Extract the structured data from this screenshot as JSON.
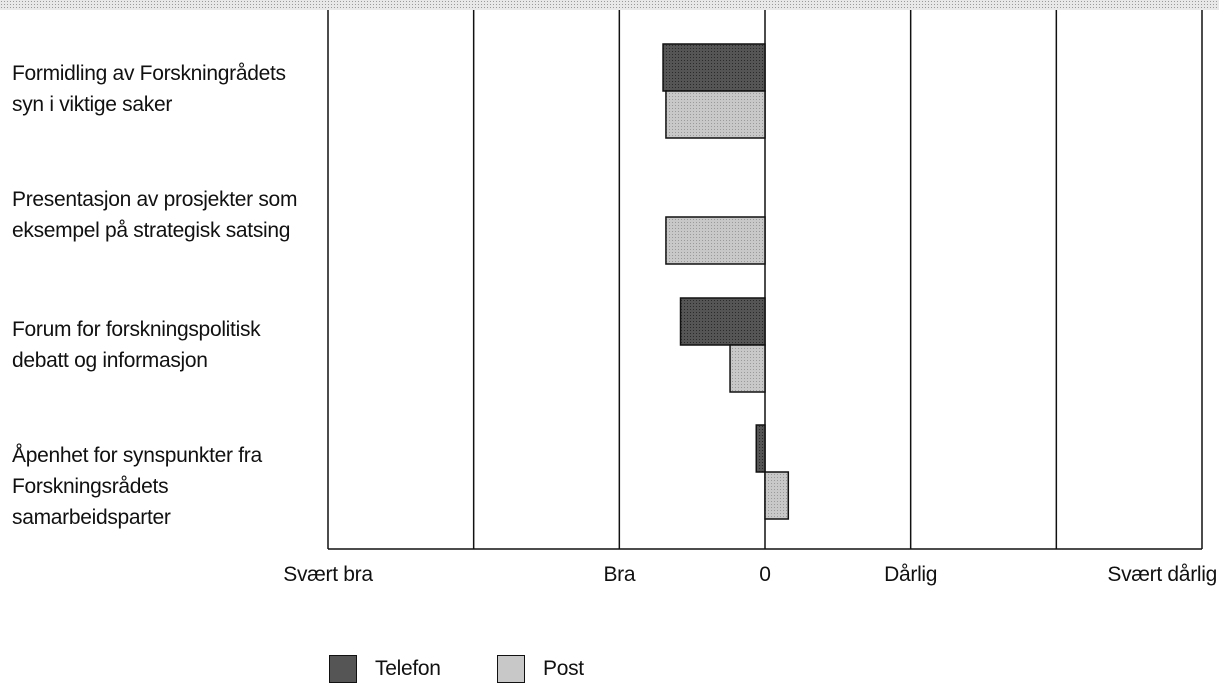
{
  "chart_data": {
    "type": "bar",
    "orientation": "horizontal",
    "categories": [
      "Formidling av Forskningrådets\nsyn i viktige saker",
      "Presentasjon av prosjekter som\neksempel på strategisk satsing",
      "Forum for forskningspolitisk\ndebatt og informasjon",
      "Åpenhet for synspunkter fra\nForskningsrådets\nsamarbeidsparter"
    ],
    "series": [
      {
        "name": "Telefon",
        "color": "#555555",
        "values": [
          -0.7,
          null,
          -0.58,
          -0.06
        ]
      },
      {
        "name": "Post",
        "color": "#c8c8c8",
        "values": [
          -0.68,
          -0.68,
          -0.24,
          0.16
        ]
      }
    ],
    "xlim": [
      -3,
      3
    ],
    "tick_labels": [
      {
        "value": -3,
        "text": "Svært bra"
      },
      {
        "value": -1,
        "text": "Bra"
      },
      {
        "value": 0,
        "text": "0"
      },
      {
        "value": 1,
        "text": "Dårlig"
      },
      {
        "value": 3,
        "text": "Svært dårlig"
      }
    ],
    "gridlines": [
      -3,
      -2,
      -1,
      0,
      1,
      2,
      3
    ],
    "grid": true,
    "legend_position": "bottom"
  }
}
